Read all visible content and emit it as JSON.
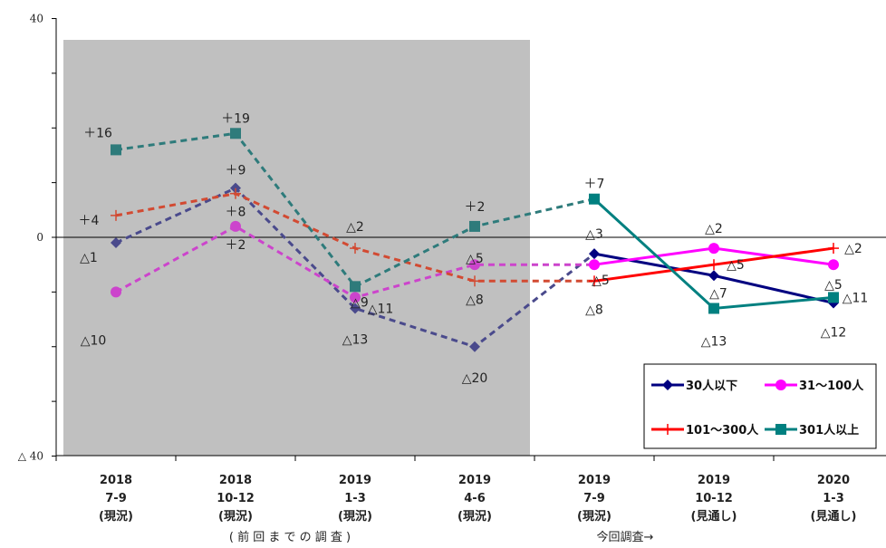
{
  "chart_data": {
    "type": "line",
    "categories": [
      [
        "2018",
        "7-9",
        "(現況)"
      ],
      [
        "2018",
        "10-12",
        "(現況)"
      ],
      [
        "2019",
        "1-3",
        "(現況)"
      ],
      [
        "2019",
        "4-6",
        "(現況)"
      ],
      [
        "2019",
        "7-9",
        "(現況)"
      ],
      [
        "2019",
        "10-12",
        "(見通し)"
      ],
      [
        "2020",
        "1-3",
        "(見通し)"
      ]
    ],
    "y_ticks": [
      "40",
      "0",
      "△ 40"
    ],
    "ylim": [
      -40,
      40
    ],
    "grid": false,
    "previous_survey_label": "( 前 回 ま で の 調 査 )",
    "current_survey_label": "今回調査→",
    "legend_position": "bottom-right",
    "series": [
      {
        "name": "30人以下",
        "color": "#000080",
        "marker": "diamond",
        "values": [
          -1,
          9,
          -13,
          -20,
          -3,
          -7,
          -12
        ],
        "labels": [
          "△1",
          "+9",
          "△13",
          "△20",
          "△3",
          "△7",
          "△12"
        ]
      },
      {
        "name": "31～100人",
        "color": "#ff00ff",
        "marker": "circle",
        "values": [
          -10,
          2,
          -11,
          -5,
          -5,
          -2,
          -5
        ],
        "labels": [
          "△10",
          "+2",
          "△11",
          "△5",
          "△5",
          "△2",
          "△5"
        ]
      },
      {
        "name": "101～300人",
        "color": "#ff0000",
        "marker": "plus",
        "values": [
          4,
          8,
          -2,
          -8,
          -8,
          -5,
          -2
        ],
        "labels": [
          "+4",
          "+8",
          "△2",
          "△8",
          "△8",
          "△5",
          "△2"
        ]
      },
      {
        "name": "301人以上",
        "color": "#008080",
        "marker": "square",
        "values": [
          16,
          19,
          -9,
          2,
          7,
          -13,
          -11
        ],
        "labels": [
          "+16",
          "+19",
          "△9",
          "+2",
          "+7",
          "△13",
          "△11"
        ]
      }
    ]
  }
}
